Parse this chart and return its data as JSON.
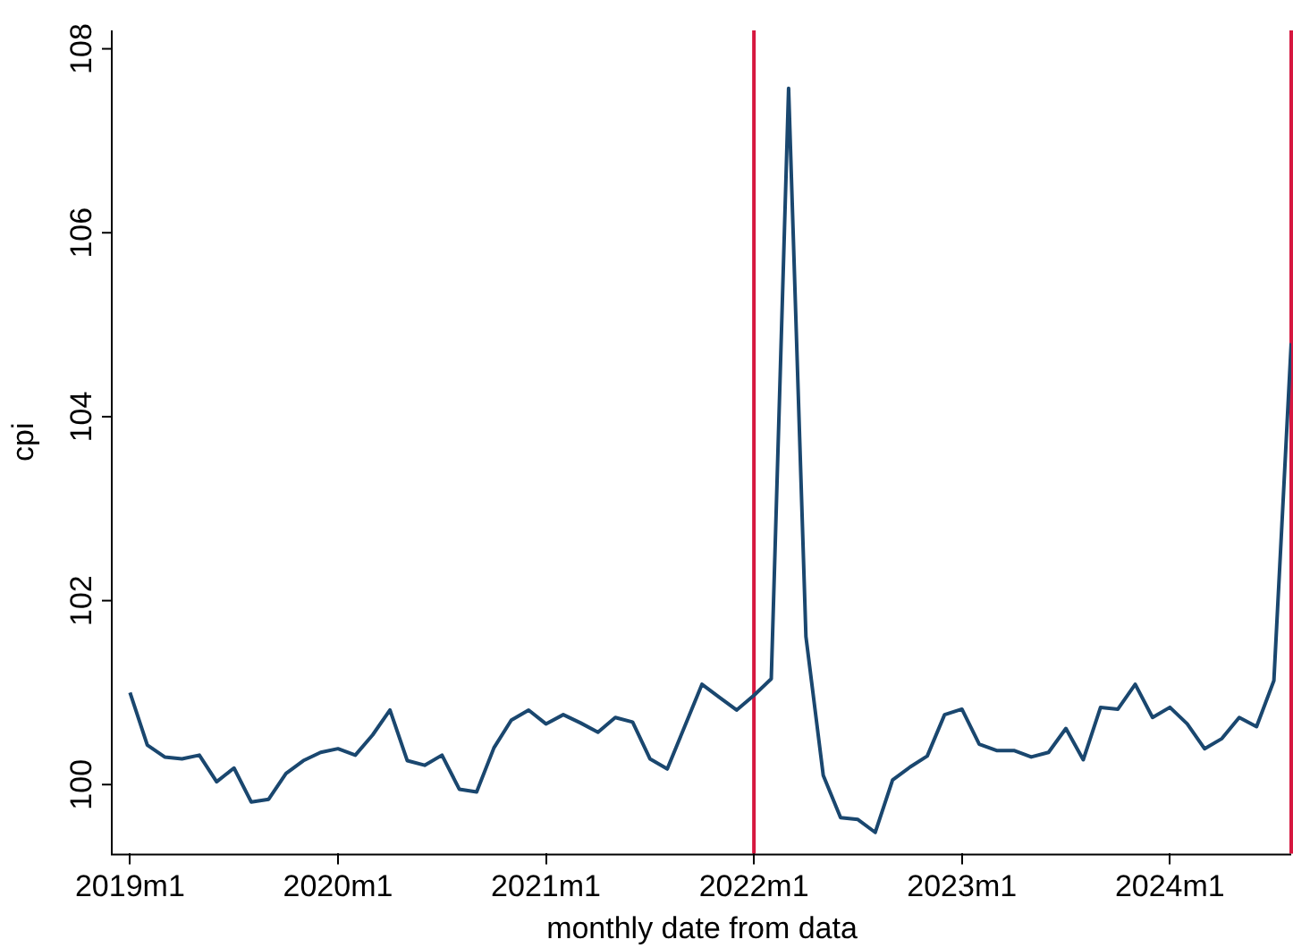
{
  "chart_data": {
    "type": "line",
    "xlabel": "monthly date from data",
    "ylabel": "cpi",
    "x": [
      "2019-01",
      "2019-02",
      "2019-03",
      "2019-04",
      "2019-05",
      "2019-06",
      "2019-07",
      "2019-08",
      "2019-09",
      "2019-10",
      "2019-11",
      "2019-12",
      "2020-01",
      "2020-02",
      "2020-03",
      "2020-04",
      "2020-05",
      "2020-06",
      "2020-07",
      "2020-08",
      "2020-09",
      "2020-10",
      "2020-11",
      "2020-12",
      "2021-01",
      "2021-02",
      "2021-03",
      "2021-04",
      "2021-05",
      "2021-06",
      "2021-07",
      "2021-08",
      "2021-09",
      "2021-10",
      "2021-11",
      "2021-12",
      "2022-01",
      "2022-02",
      "2022-03",
      "2022-04",
      "2022-05",
      "2022-06",
      "2022-07",
      "2022-08",
      "2022-09",
      "2022-10",
      "2022-11",
      "2022-12",
      "2023-01",
      "2023-02",
      "2023-03",
      "2023-04",
      "2023-05",
      "2023-06",
      "2023-07",
      "2023-08",
      "2023-09",
      "2023-10",
      "2023-11",
      "2023-12",
      "2024-01",
      "2024-02",
      "2024-03",
      "2024-04",
      "2024-05",
      "2024-06",
      "2024-07",
      "2024-08"
    ],
    "series": [
      {
        "color": "#1a476f",
        "values": [
          101.0,
          100.43,
          100.3,
          100.28,
          100.32,
          100.03,
          100.18,
          99.81,
          99.84,
          100.12,
          100.26,
          100.35,
          100.39,
          100.32,
          100.54,
          100.81,
          100.26,
          100.21,
          100.32,
          99.95,
          99.92,
          100.4,
          100.7,
          100.81,
          100.66,
          100.76,
          100.67,
          100.57,
          100.73,
          100.68,
          100.28,
          100.17,
          100.63,
          101.09,
          100.95,
          100.81,
          100.97,
          101.15,
          107.57,
          101.61,
          100.1,
          99.64,
          99.62,
          99.48,
          100.05,
          100.19,
          100.31,
          100.76,
          100.82,
          100.44,
          100.37,
          100.37,
          100.3,
          100.35,
          100.61,
          100.27,
          100.84,
          100.82,
          101.09,
          100.73,
          100.84,
          100.66,
          100.39,
          100.5,
          100.73,
          100.63,
          101.13,
          104.8
        ]
      }
    ],
    "xlim": [
      "2018-12",
      "2024-08"
    ],
    "xticks": [
      {
        "value": "2019-01",
        "label": "2019m1"
      },
      {
        "value": "2020-01",
        "label": "2020m1"
      },
      {
        "value": "2021-01",
        "label": "2021m1"
      },
      {
        "value": "2022-01",
        "label": "2022m1"
      },
      {
        "value": "2023-01",
        "label": "2023m1"
      },
      {
        "value": "2024-01",
        "label": "2024m1"
      }
    ],
    "ylim": [
      99.25,
      108.2
    ],
    "yticks": [
      100,
      102,
      104,
      106,
      108
    ],
    "ref_lines": [
      {
        "axis": "x",
        "value": "2022-01",
        "color": "#d6173f"
      },
      {
        "axis": "x",
        "value": "2024-08",
        "color": "#d6173f"
      }
    ],
    "grid": false,
    "legend": false,
    "marker": "none",
    "line_style": "solid"
  }
}
